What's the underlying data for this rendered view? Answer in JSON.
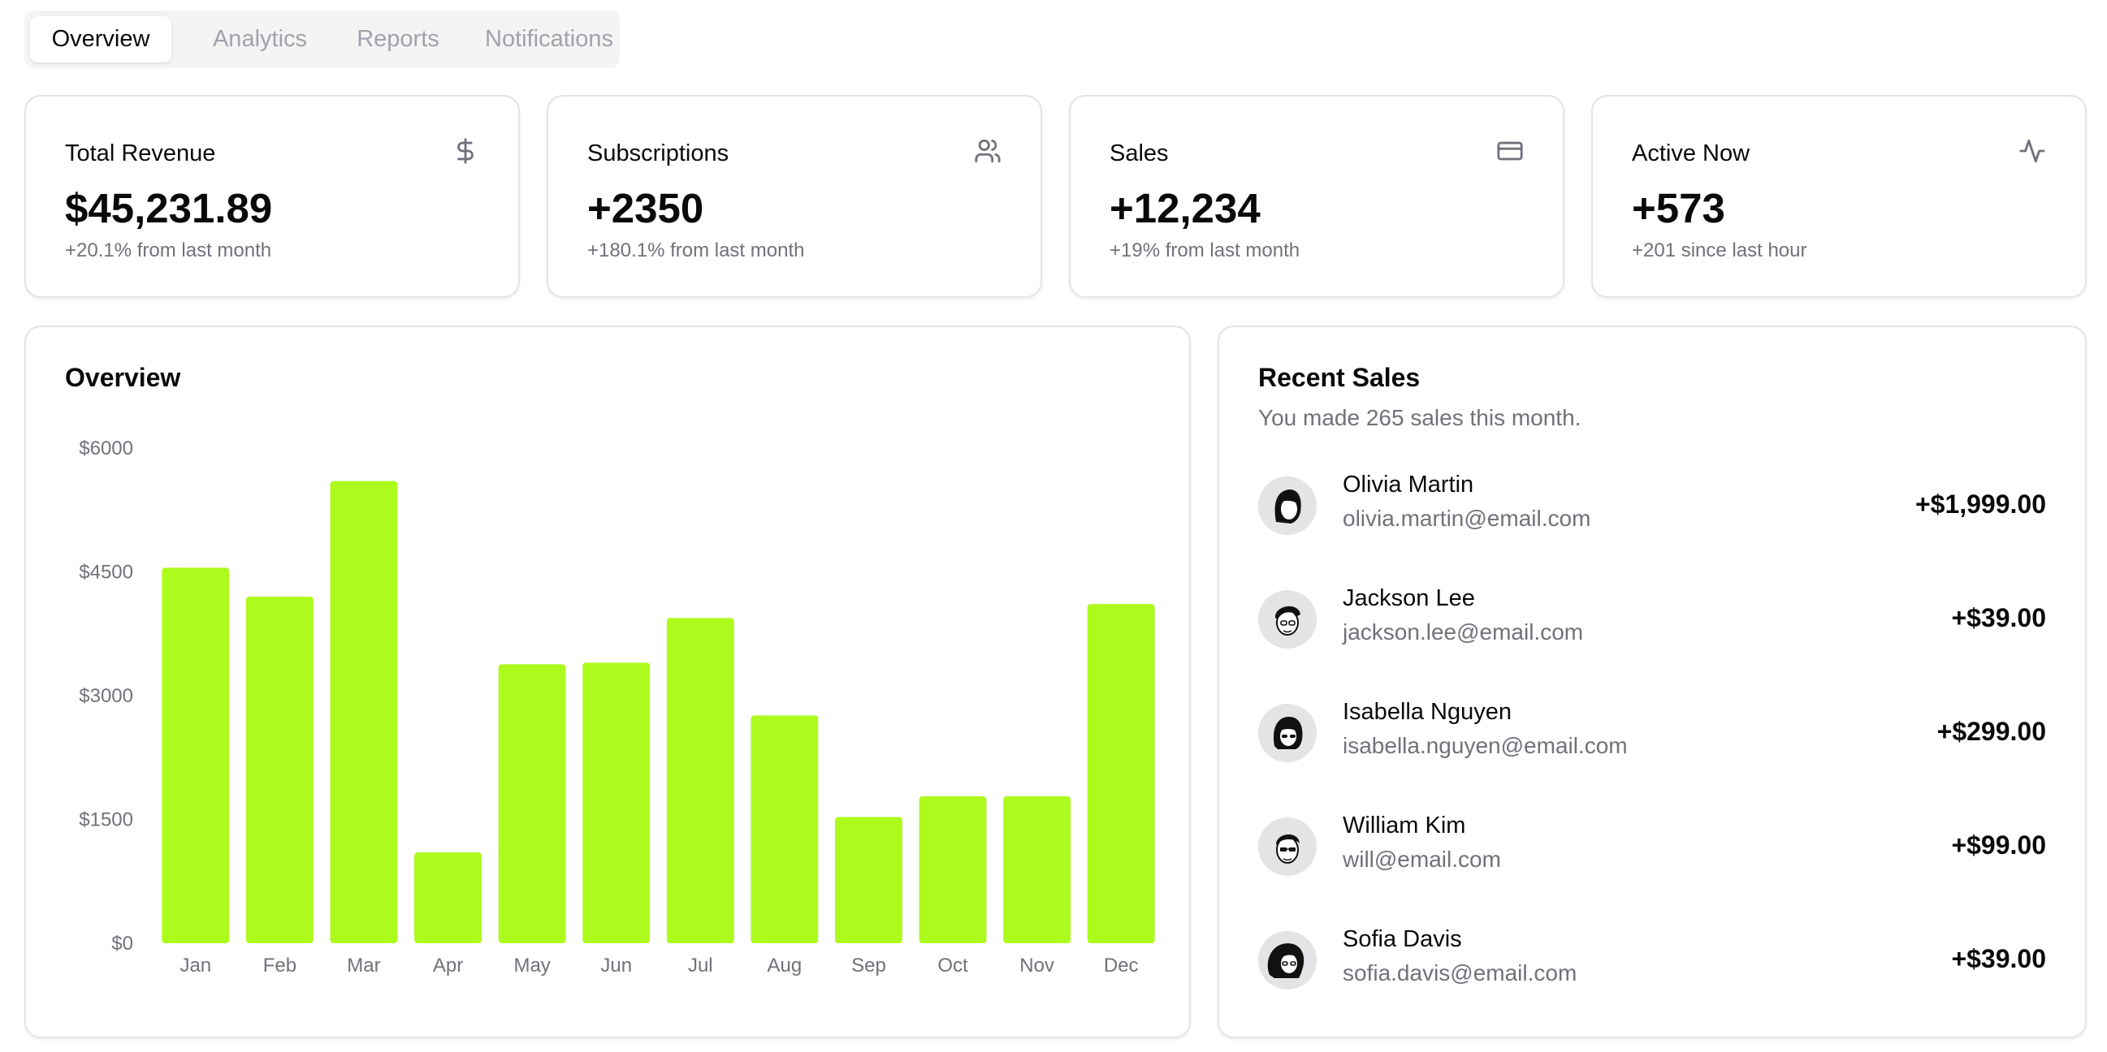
{
  "tabs": [
    {
      "label": "Overview",
      "active": true
    },
    {
      "label": "Analytics",
      "active": false
    },
    {
      "label": "Reports",
      "active": false
    },
    {
      "label": "Notifications",
      "active": false
    }
  ],
  "stats": [
    {
      "title": "Total Revenue",
      "value": "$45,231.89",
      "sub": "+20.1% from last month",
      "icon": "dollar-icon"
    },
    {
      "title": "Subscriptions",
      "value": "+2350",
      "sub": "+180.1% from last month",
      "icon": "users-icon"
    },
    {
      "title": "Sales",
      "value": "+12,234",
      "sub": "+19% from last month",
      "icon": "credit-card-icon"
    },
    {
      "title": "Active Now",
      "value": "+573",
      "sub": "+201 since last hour",
      "icon": "activity-icon"
    }
  ],
  "overview": {
    "title": "Overview"
  },
  "chart_data": {
    "type": "bar",
    "categories": [
      "Jan",
      "Feb",
      "Mar",
      "Apr",
      "May",
      "Jun",
      "Jul",
      "Aug",
      "Sep",
      "Oct",
      "Nov",
      "Dec"
    ],
    "values": [
      4550,
      4200,
      5600,
      1100,
      3380,
      3400,
      3940,
      2760,
      1530,
      1780,
      1780,
      4110
    ],
    "yticks": [
      "$0",
      "$1500",
      "$3000",
      "$4500",
      "$6000"
    ],
    "ylim": [
      0,
      6000
    ],
    "bar_color": "#adfa1d",
    "grid": false,
    "legend": false
  },
  "recent_sales": {
    "title": "Recent Sales",
    "description": "You made 265 sales this month.",
    "items": [
      {
        "name": "Olivia Martin",
        "email": "olivia.martin@email.com",
        "amount": "+$1,999.00",
        "avatar": "avatar-icon"
      },
      {
        "name": "Jackson Lee",
        "email": "jackson.lee@email.com",
        "amount": "+$39.00",
        "avatar": "avatar-icon"
      },
      {
        "name": "Isabella Nguyen",
        "email": "isabella.nguyen@email.com",
        "amount": "+$299.00",
        "avatar": "avatar-icon"
      },
      {
        "name": "William Kim",
        "email": "will@email.com",
        "amount": "+$99.00",
        "avatar": "avatar-icon"
      },
      {
        "name": "Sofia Davis",
        "email": "sofia.davis@email.com",
        "amount": "+$39.00",
        "avatar": "avatar-icon"
      }
    ]
  }
}
